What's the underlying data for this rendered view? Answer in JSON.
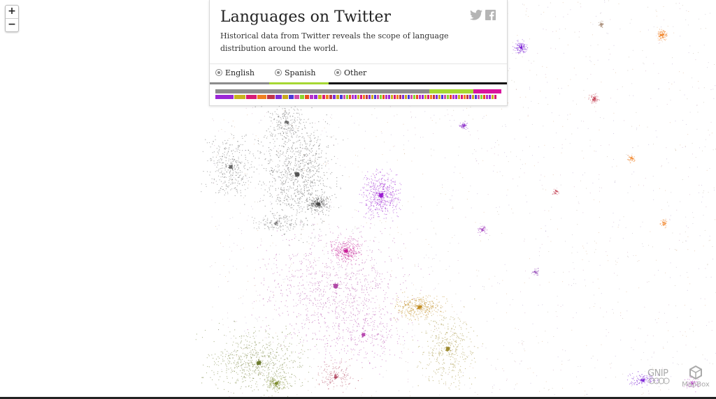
{
  "panel": {
    "title": "Languages on Twitter",
    "description": "Historical data from Twitter reveals the scope of language distribution around the world.",
    "tabs": [
      {
        "label": "English",
        "color": "#8c8c8c"
      },
      {
        "label": "Spanish",
        "color": "#a6d832"
      },
      {
        "label": "Other",
        "color": "#111111"
      }
    ],
    "bar_colors": [
      "#8c8c8c",
      "#a6d832",
      "#d8149e"
    ],
    "swatch_colors": [
      "#9b27d6",
      "#c8b41e",
      "#d81b77",
      "#f08020",
      "#c0364a",
      "#7b2fd8",
      "#c9a820",
      "#4b39d8",
      "#d24fa8",
      "#8bd42e",
      "#e8501e",
      "#b832c8"
    ]
  },
  "social": {
    "icons": [
      "twitter-icon",
      "facebook-icon"
    ]
  },
  "zoom": {
    "in_label": "+",
    "out_label": "−"
  },
  "attribution": {
    "gnip_label": "GNIP",
    "mapbox_label": "MapBox"
  }
}
